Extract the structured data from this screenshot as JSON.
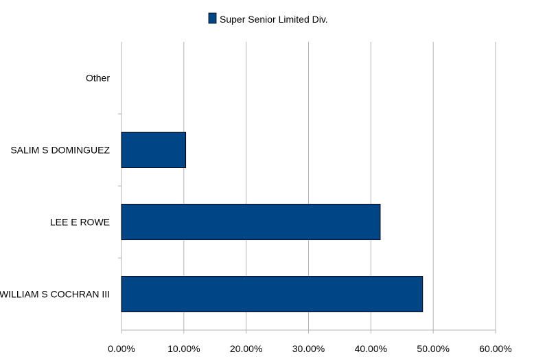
{
  "chart_data": {
    "type": "bar",
    "orientation": "horizontal",
    "categories": [
      "WILLIAM S COCHRAN III",
      "LEE E ROWE",
      "SALIM S DOMINGUEZ",
      "Other"
    ],
    "series": [
      {
        "name": "Super Senior Limited Div.",
        "values": [
          48.3,
          41.5,
          10.3,
          0
        ],
        "color": "#004586"
      }
    ],
    "xlim": [
      0,
      60
    ],
    "xticks": [
      "0.00%",
      "10.00%",
      "20.00%",
      "30.00%",
      "40.00%",
      "50.00%",
      "60.00%"
    ],
    "grid": true,
    "legend": "top-center"
  }
}
